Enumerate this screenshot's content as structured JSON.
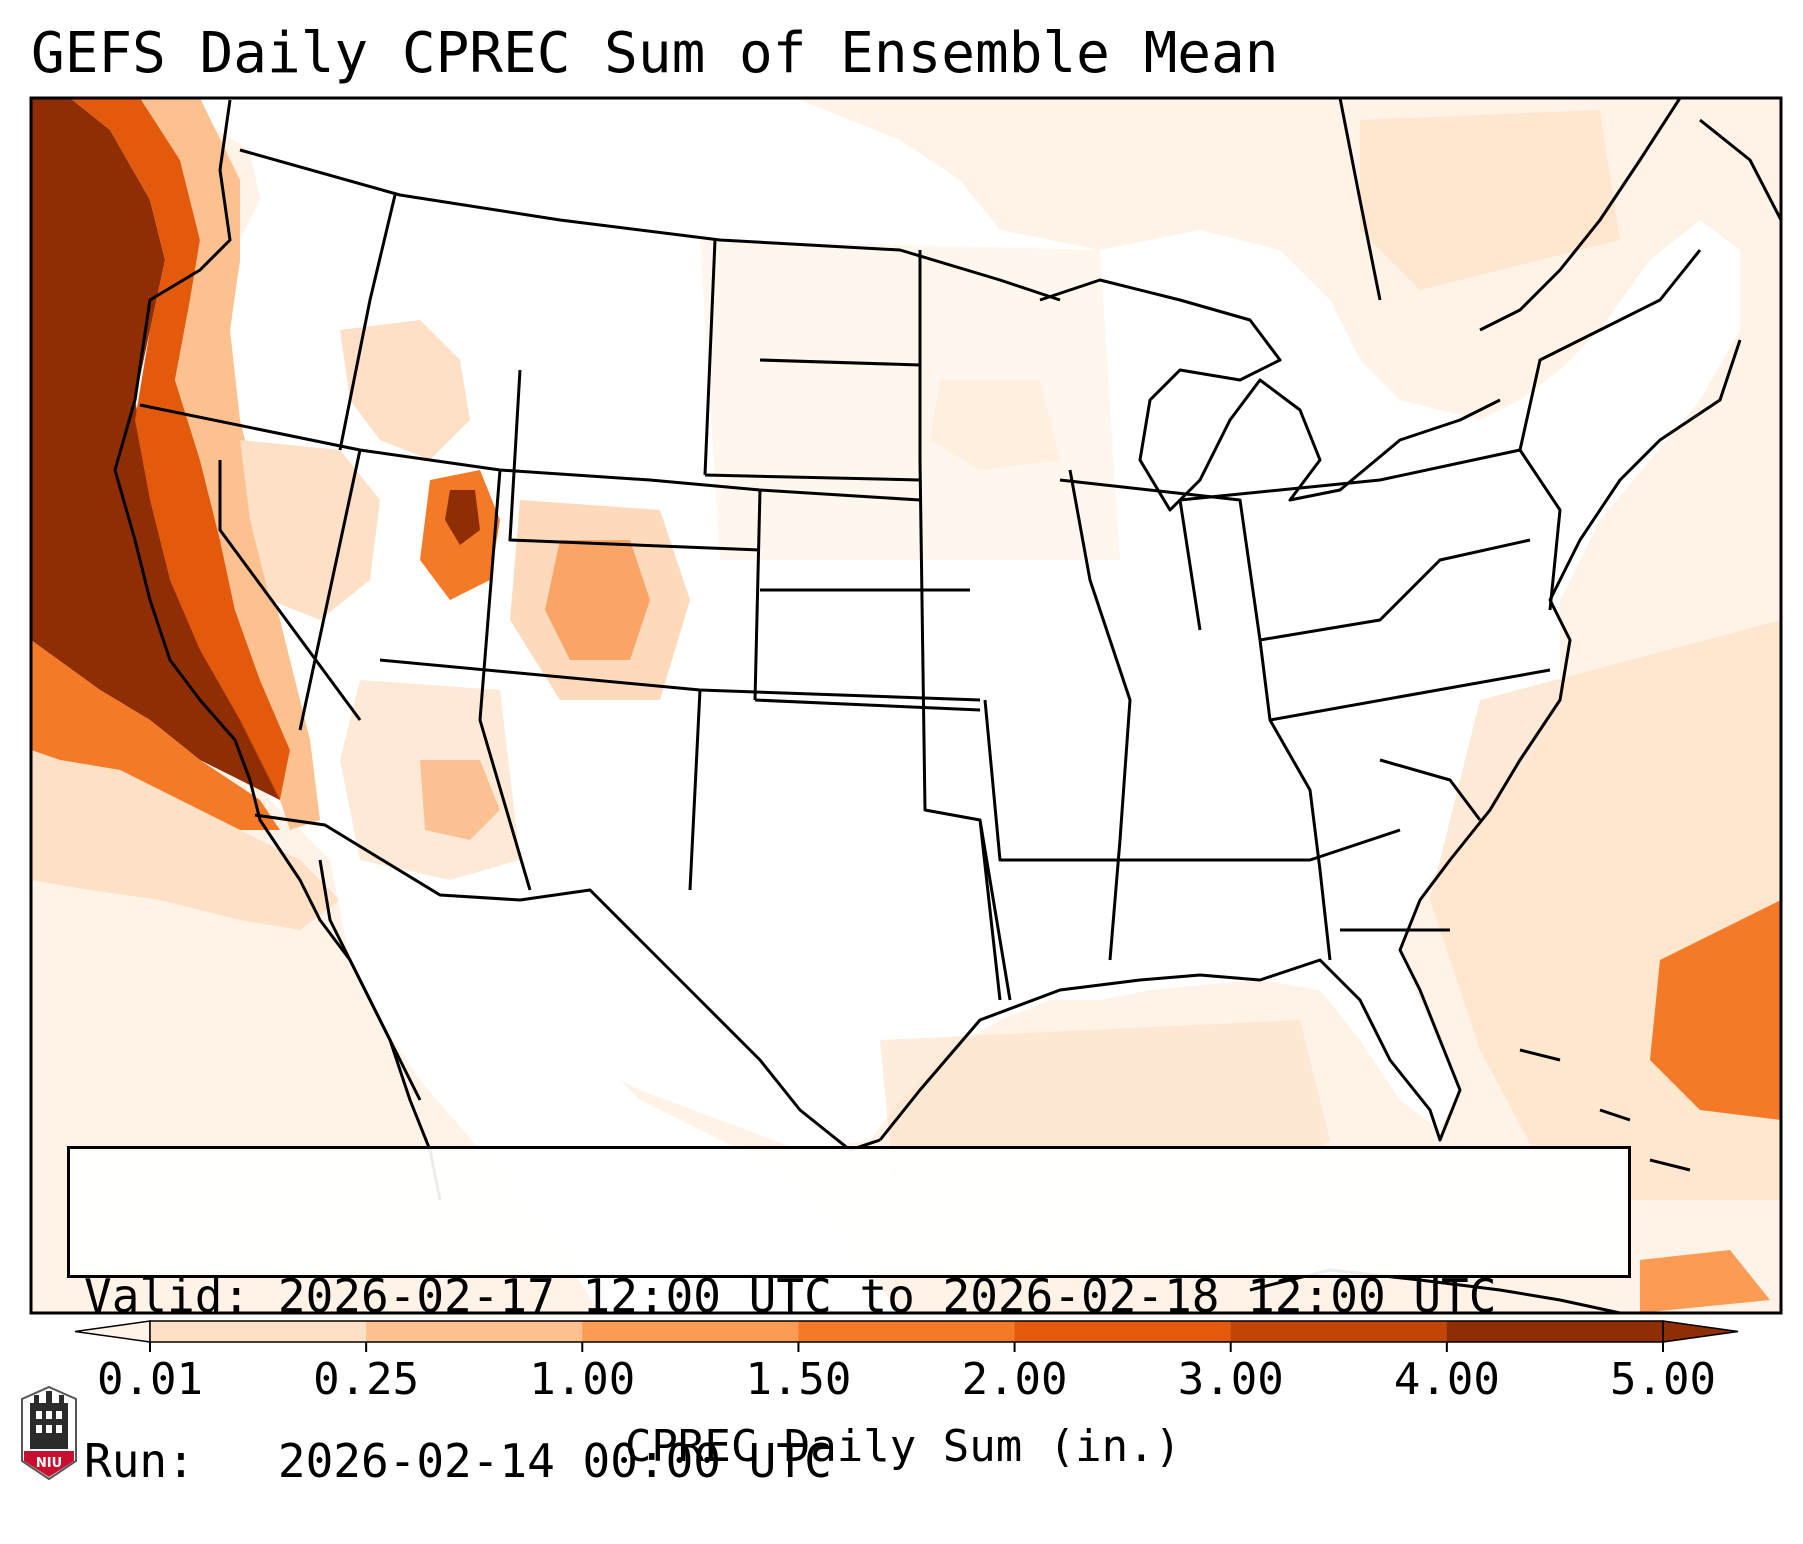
{
  "title": "GEFS Daily CPREC Sum of Ensemble Mean",
  "valid_label": "Valid:",
  "valid_text": "2026-02-17 12:00 UTC to 2026-02-18 12:00 UTC",
  "run_label": "Run:",
  "run_text": "2026-02-14 00:00 UTC",
  "colorbar": {
    "label": "CPREC Daily Sum (in.)",
    "ticks": [
      "0.01",
      "0.25",
      "1.00",
      "1.50",
      "2.00",
      "3.00",
      "4.00",
      "5.00"
    ],
    "colors": [
      "#fff2e6",
      "#fde0c5",
      "#fdc18f",
      "#fb9b54",
      "#f47a27",
      "#e35a0c",
      "#c24406",
      "#8f2d04"
    ],
    "extend": "both"
  },
  "logo": {
    "text": "NIU",
    "icon": "niu-tower-icon",
    "color": "#c8102e"
  },
  "colors": {
    "ocean_fill": "#fff6ee",
    "land_fill": "#ffffff",
    "border": "#000000"
  }
}
